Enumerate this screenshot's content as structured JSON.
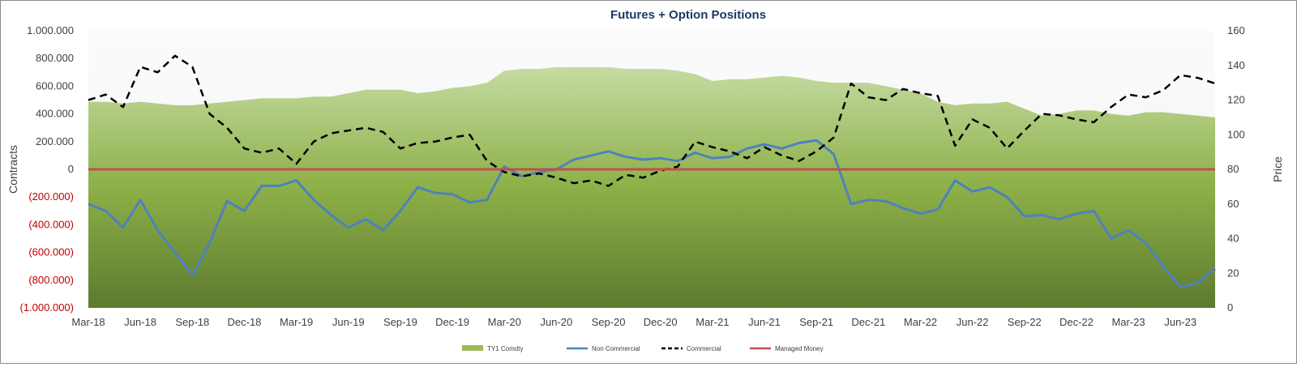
{
  "chart_data": {
    "type": "line",
    "title": "Futures + Option Positions",
    "ylabel": "Contracts",
    "y2label": "Price",
    "ylim": [
      -1000000,
      1000000
    ],
    "y2lim": [
      0,
      160
    ],
    "yticks": [
      "1.000.000",
      "800.000",
      "600.000",
      "400.000",
      "200.000",
      "0",
      "(200.000)",
      "(400.000)",
      "(600.000)",
      "(800.000)",
      "(1.000.000)"
    ],
    "y2ticks": [
      "160",
      "140",
      "120",
      "100",
      "80",
      "60",
      "40",
      "20",
      "0"
    ],
    "x_tick_labels": [
      "Mar-18",
      "Jun-18",
      "Sep-18",
      "Dec-18",
      "Mar-19",
      "Jun-19",
      "Sep-19",
      "Dec-19",
      "Mar-20",
      "Jun-20",
      "Sep-20",
      "Dec-20",
      "Mar-21",
      "Jun-21",
      "Sep-21",
      "Dec-21",
      "Mar-22",
      "Jun-22",
      "Sep-22",
      "Dec-22",
      "Mar-23",
      "Jun-23"
    ],
    "x_months": [
      "2018-03",
      "2018-04",
      "2018-05",
      "2018-06",
      "2018-07",
      "2018-08",
      "2018-09",
      "2018-10",
      "2018-11",
      "2018-12",
      "2019-01",
      "2019-02",
      "2019-03",
      "2019-04",
      "2019-05",
      "2019-06",
      "2019-07",
      "2019-08",
      "2019-09",
      "2019-10",
      "2019-11",
      "2019-12",
      "2020-01",
      "2020-02",
      "2020-03",
      "2020-04",
      "2020-05",
      "2020-06",
      "2020-07",
      "2020-08",
      "2020-09",
      "2020-10",
      "2020-11",
      "2020-12",
      "2021-01",
      "2021-02",
      "2021-03",
      "2021-04",
      "2021-05",
      "2021-06",
      "2021-07",
      "2021-08",
      "2021-09",
      "2021-10",
      "2021-11",
      "2021-12",
      "2022-01",
      "2022-02",
      "2022-03",
      "2022-04",
      "2022-05",
      "2022-06",
      "2022-07",
      "2022-08",
      "2022-09",
      "2022-10",
      "2022-11",
      "2022-12",
      "2023-01",
      "2023-02",
      "2023-03",
      "2023-04",
      "2023-05",
      "2023-06",
      "2023-07",
      "2023-08"
    ],
    "legend_position": "bottom",
    "grid": false,
    "series": [
      {
        "name": "TY1 Comdty",
        "type": "area",
        "axis": "right",
        "color": "#9bbb59",
        "values": [
          119,
          119,
          118,
          119,
          118,
          117,
          117,
          118,
          119,
          120,
          121,
          121,
          121,
          122,
          122,
          124,
          126,
          126,
          126,
          124,
          125,
          127,
          128,
          130,
          137,
          138,
          138,
          139,
          139,
          139,
          139,
          138,
          138,
          138,
          137,
          135,
          131,
          132,
          132,
          133,
          134,
          133,
          131,
          130,
          130,
          130,
          128,
          126,
          124,
          119,
          117,
          118,
          118,
          119,
          115,
          111,
          112,
          114,
          114,
          112,
          111,
          113,
          113,
          112,
          111,
          110
        ]
      },
      {
        "name": "Non Commercial",
        "type": "line",
        "axis": "left",
        "color": "#4f81bd",
        "values": [
          -250000,
          -300000,
          -420000,
          -220000,
          -440000,
          -600000,
          -760000,
          -530000,
          -230000,
          -300000,
          -120000,
          -120000,
          -80000,
          -220000,
          -330000,
          -420000,
          -360000,
          -440000,
          -300000,
          -130000,
          -170000,
          -180000,
          -240000,
          -220000,
          20000,
          -50000,
          -20000,
          0,
          70000,
          100000,
          130000,
          90000,
          70000,
          80000,
          60000,
          120000,
          80000,
          90000,
          150000,
          180000,
          150000,
          190000,
          210000,
          110000,
          -250000,
          -220000,
          -230000,
          -280000,
          -320000,
          -290000,
          -80000,
          -160000,
          -130000,
          -200000,
          -340000,
          -330000,
          -360000,
          -320000,
          -300000,
          -500000,
          -440000,
          -530000,
          -700000,
          -850000,
          -820000,
          -720000
        ]
      },
      {
        "name": "Commercial",
        "type": "line",
        "axis": "left",
        "dash": true,
        "color": "#000000",
        "values": [
          500000,
          540000,
          450000,
          740000,
          700000,
          820000,
          740000,
          400000,
          300000,
          150000,
          120000,
          150000,
          40000,
          200000,
          260000,
          280000,
          300000,
          270000,
          150000,
          190000,
          200000,
          230000,
          250000,
          60000,
          -20000,
          -50000,
          -30000,
          -60000,
          -100000,
          -80000,
          -120000,
          -40000,
          -60000,
          -10000,
          20000,
          200000,
          160000,
          130000,
          80000,
          160000,
          100000,
          60000,
          130000,
          230000,
          620000,
          520000,
          500000,
          580000,
          550000,
          530000,
          170000,
          360000,
          300000,
          150000,
          280000,
          400000,
          390000,
          360000,
          340000,
          450000,
          540000,
          520000,
          570000,
          680000,
          660000,
          620000
        ]
      },
      {
        "name": "Managed Money",
        "type": "line",
        "axis": "left",
        "color": "#c0504d",
        "values": [
          0,
          0
        ]
      }
    ]
  }
}
